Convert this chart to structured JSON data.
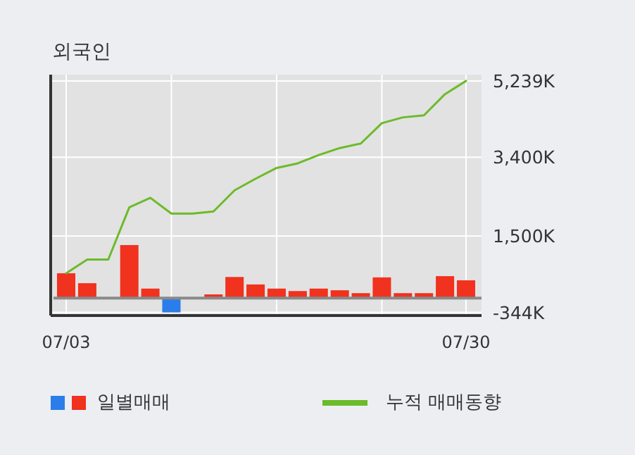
{
  "chart_data": {
    "type": "bar",
    "title": "외국인",
    "categories": [
      "07/03",
      null,
      null,
      null,
      null,
      null,
      null,
      null,
      null,
      null,
      null,
      null,
      null,
      null,
      null,
      null,
      null,
      null,
      null,
      "07/30"
    ],
    "series": [
      {
        "name": "일별매매",
        "values": [
          600,
          360,
          0,
          1280,
          230,
          -344,
          0,
          90,
          510,
          330,
          230,
          170,
          230,
          190,
          120,
          500,
          120,
          120,
          530,
          430
        ],
        "colors": [
          "#f0321e",
          "#f0321e",
          "#f0321e",
          "#f0321e",
          "#f0321e",
          "#2b7de9",
          "#f0321e",
          "#f0321e",
          "#f0321e",
          "#f0321e",
          "#f0321e",
          "#f0321e",
          "#f0321e",
          "#f0321e",
          "#f0321e",
          "#f0321e",
          "#f0321e",
          "#f0321e",
          "#f0321e",
          "#f0321e"
        ]
      },
      {
        "name": "누적 매매동향",
        "type": "line",
        "color": "#6cbb2a",
        "values": [
          600,
          930,
          930,
          2190,
          2420,
          2040,
          2040,
          2090,
          2600,
          2880,
          3140,
          3250,
          3450,
          3620,
          3730,
          4220,
          4360,
          4410,
          4920,
          5239
        ]
      }
    ],
    "ylim": [
      -420,
      5390
    ],
    "yticks": [
      {
        "value": -344,
        "label": "-344K"
      },
      {
        "value": 1500,
        "label": "1,500K"
      },
      {
        "value": 3400,
        "label": "3,400K"
      },
      {
        "value": 5239,
        "label": "5,239K"
      }
    ],
    "grid": true,
    "legend": "bottom"
  }
}
